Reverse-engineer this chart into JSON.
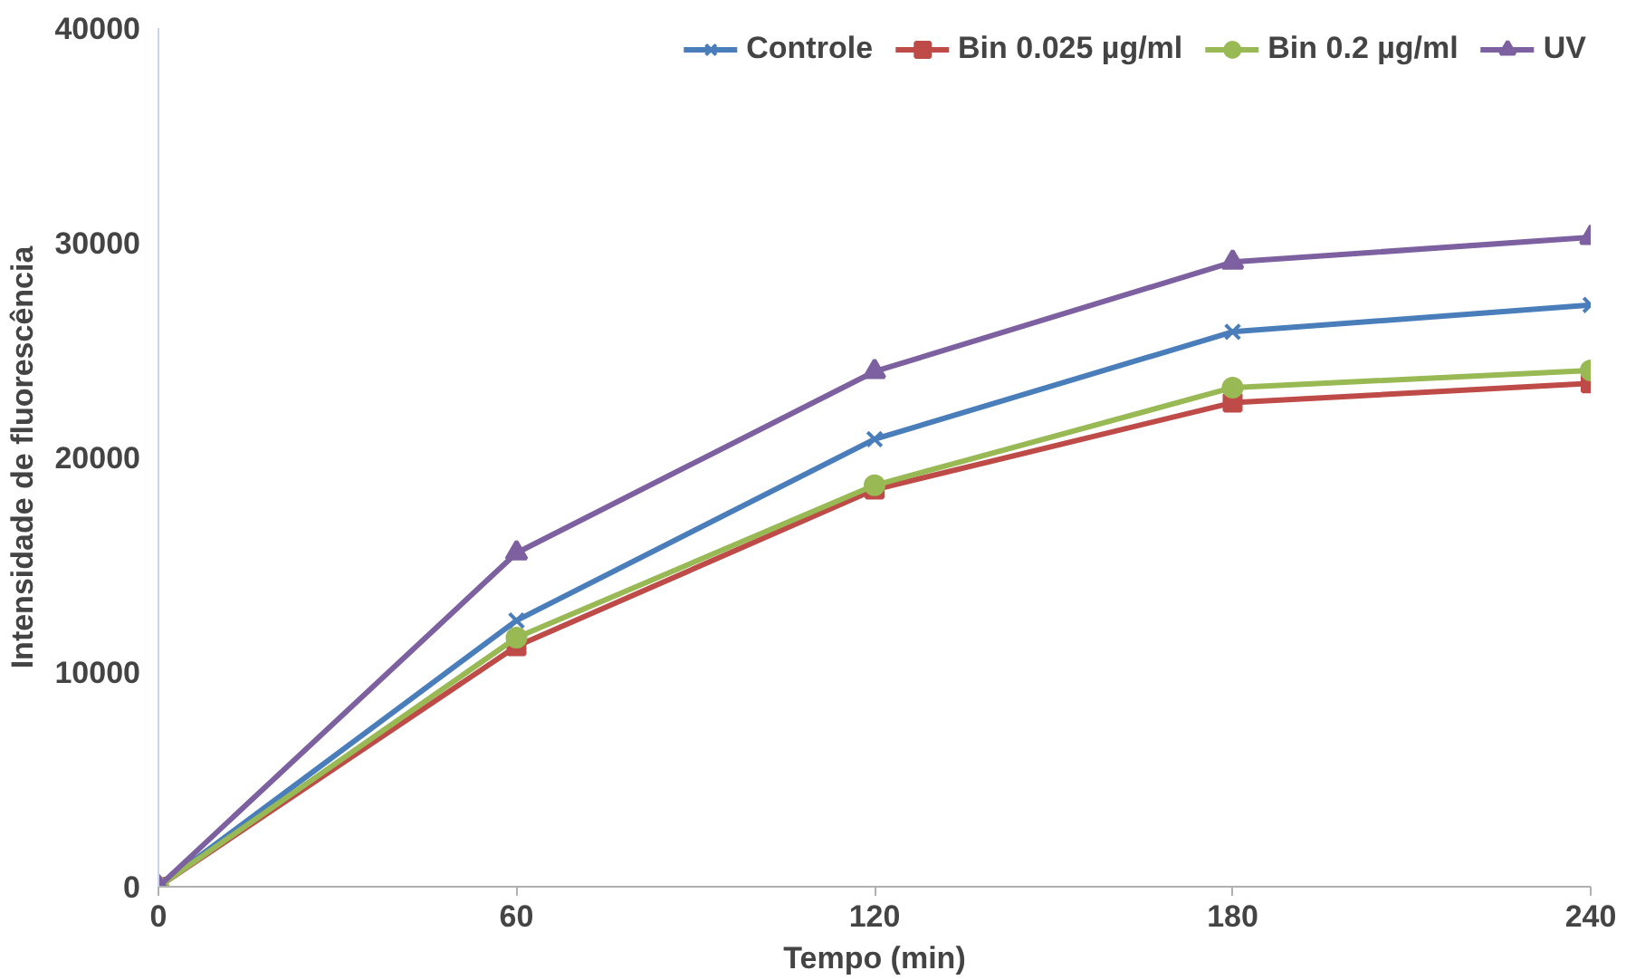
{
  "chart_data": {
    "type": "line",
    "xlabel": "Tempo (min)",
    "ylabel": "Intensidade de fluorescência",
    "x": [
      0,
      60,
      120,
      180,
      240
    ],
    "series": [
      {
        "name": "Controle",
        "color": "#4a7ebb",
        "marker": "cross",
        "values": [
          0,
          12400,
          20850,
          25850,
          27100
        ]
      },
      {
        "name": "Bin 0.025 µg/ml",
        "color": "#be4b48",
        "marker": "square",
        "values": [
          0,
          11200,
          18500,
          22550,
          23450
        ]
      },
      {
        "name": "Bin 0.2 µg/ml",
        "color": "#98b954",
        "marker": "circle",
        "values": [
          0,
          11600,
          18700,
          23250,
          24050
        ]
      },
      {
        "name": "UV",
        "color": "#7d60a0",
        "marker": "triangle",
        "values": [
          0,
          15550,
          24000,
          29100,
          30250
        ]
      }
    ],
    "xlim": [
      0,
      240
    ],
    "xticks": [
      0,
      60,
      120,
      180,
      240
    ],
    "ylim": [
      0,
      40000
    ],
    "yticks": [
      0,
      10000,
      20000,
      30000,
      40000
    ],
    "grid": false,
    "legend": "top right",
    "line_style": "solid"
  }
}
